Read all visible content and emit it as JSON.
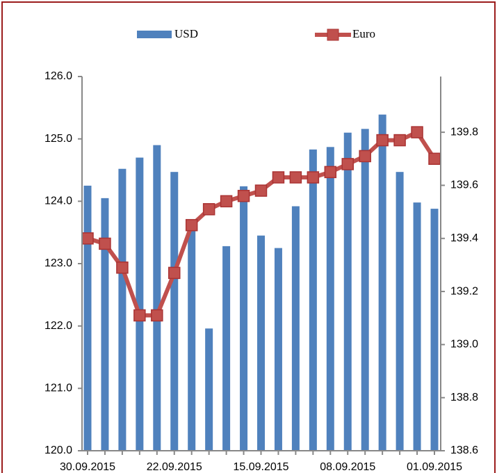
{
  "chart_data": {
    "type": "bar_line",
    "categories": [
      "30.09.2015",
      null,
      null,
      null,
      null,
      "22.09.2015",
      null,
      null,
      null,
      null,
      "15.09.2015",
      null,
      null,
      null,
      null,
      "08.09.2015",
      null,
      null,
      null,
      null,
      "01.09.2015"
    ],
    "series": [
      {
        "name": "USD",
        "type": "bar",
        "color": "#4f81bd",
        "axis": "y",
        "values": [
          124.25,
          124.05,
          124.52,
          124.7,
          124.9,
          124.47,
          123.6,
          121.96,
          123.28,
          124.24,
          123.45,
          123.25,
          123.92,
          124.83,
          124.87,
          125.1,
          125.16,
          125.39,
          124.47,
          123.98,
          123.88
        ]
      },
      {
        "name": "Euro",
        "type": "line",
        "color": "#c0504d",
        "axis": "y2",
        "values": [
          139.4,
          139.38,
          139.29,
          139.11,
          139.11,
          139.27,
          139.45,
          139.51,
          139.54,
          139.56,
          139.58,
          139.63,
          139.63,
          139.63,
          139.65,
          139.68,
          139.71,
          139.77,
          139.77,
          139.8,
          139.7
        ]
      }
    ],
    "ylim": [
      120,
      126
    ],
    "yticks": [
      {
        "value": 120,
        "label": "120.0"
      },
      {
        "value": 121,
        "label": "121.0"
      },
      {
        "value": 122,
        "label": "122.0"
      },
      {
        "value": 123,
        "label": "123.0"
      },
      {
        "value": 124,
        "label": "124.0"
      },
      {
        "value": 125,
        "label": "125.0"
      },
      {
        "value": 126,
        "label": "126.0"
      }
    ],
    "y2lim": [
      138.6,
      140.01
    ],
    "y2ticks": [
      138.6,
      138.8,
      {
        "value": 139,
        "label": "139.0"
      },
      139.2,
      139.4,
      139.6,
      139.8
    ],
    "legend": "top"
  }
}
